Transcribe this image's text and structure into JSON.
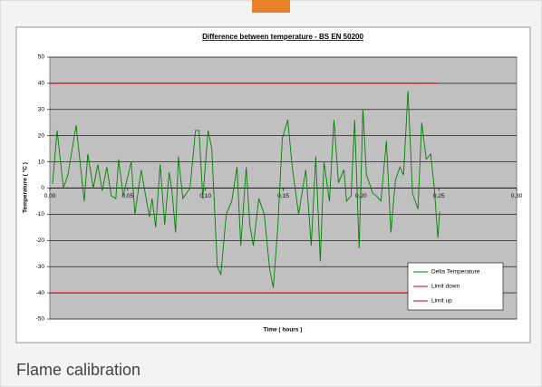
{
  "caption": "Flame calibration",
  "chart_data": {
    "type": "line",
    "title": "Difference between temperature - BS EN 50200",
    "xlabel": "Time ( hours )",
    "ylabel": "Temperature ( °C )",
    "xlim": [
      0,
      0.3
    ],
    "xticks": [
      {
        "value": 0,
        "label": "0,00"
      },
      {
        "value": 0.05,
        "label": "0,05"
      },
      {
        "value": 0.1,
        "label": "0,10"
      },
      {
        "value": 0.15,
        "label": "0,15"
      },
      {
        "value": 0.2,
        "label": "0,20"
      },
      {
        "value": 0.25,
        "label": "0,25"
      },
      {
        "value": 0.3,
        "label": "0,30"
      }
    ],
    "ylim": [
      -50,
      50
    ],
    "yticks": [
      -50,
      -40,
      -30,
      -20,
      -10,
      0,
      10,
      20,
      30,
      40,
      50
    ],
    "grid": true,
    "legend": "lower right",
    "series": [
      {
        "name": "Delta Temperature",
        "color": "#008000",
        "x": [
          0.0017,
          0.0047,
          0.0087,
          0.0116,
          0.0169,
          0.0221,
          0.0244,
          0.0279,
          0.0308,
          0.0337,
          0.0366,
          0.0395,
          0.0424,
          0.0442,
          0.0471,
          0.0523,
          0.0547,
          0.0587,
          0.061,
          0.064,
          0.0657,
          0.068,
          0.0709,
          0.0738,
          0.0767,
          0.0785,
          0.0808,
          0.0826,
          0.0855,
          0.0901,
          0.0936,
          0.0959,
          0.0983,
          0.1017,
          0.1041,
          0.1076,
          0.1099,
          0.1134,
          0.1169,
          0.1203,
          0.1227,
          0.1262,
          0.1285,
          0.1308,
          0.1343,
          0.1378,
          0.1413,
          0.1436,
          0.1465,
          0.1494,
          0.1529,
          0.1558,
          0.1599,
          0.1645,
          0.168,
          0.1709,
          0.1738,
          0.1762,
          0.1797,
          0.1826,
          0.1855,
          0.189,
          0.1907,
          0.1936,
          0.1959,
          0.1988,
          0.2012,
          0.2035,
          0.2076,
          0.2099,
          0.2128,
          0.2163,
          0.2192,
          0.2221,
          0.225,
          0.2273,
          0.2302,
          0.2331,
          0.2366,
          0.239,
          0.2419,
          0.2448,
          0.2471,
          0.2494,
          0.2506
        ],
        "values": [
          1.5,
          22,
          0,
          5,
          24,
          -5,
          13,
          0,
          9,
          -1,
          8,
          -3,
          -4,
          11,
          -3,
          10,
          -10,
          7,
          -1,
          -11,
          -4,
          -15,
          9,
          -14,
          6,
          -1,
          -17,
          12,
          -4,
          0,
          22,
          22,
          -4,
          22,
          15,
          -30,
          -33,
          -10,
          -5,
          8,
          -22,
          8,
          -14,
          -22,
          -4,
          -10,
          -31,
          -38,
          -15,
          19,
          26,
          8,
          -10,
          7,
          -22,
          12,
          -28,
          10,
          -5,
          26,
          2,
          7,
          -5,
          -3,
          26,
          -23,
          30,
          5,
          -2,
          -3,
          -5,
          18,
          -17,
          3,
          8,
          5,
          37,
          -2,
          -8,
          25,
          11,
          13,
          0,
          -19,
          -9
        ]
      },
      {
        "name": "Limit down",
        "color": "#e00000",
        "x": [
          0,
          0.25
        ],
        "values": [
          -40,
          -40
        ]
      },
      {
        "name": "Limit up",
        "color": "#e00000",
        "x": [
          0,
          0.25
        ],
        "values": [
          40,
          40
        ]
      }
    ]
  }
}
